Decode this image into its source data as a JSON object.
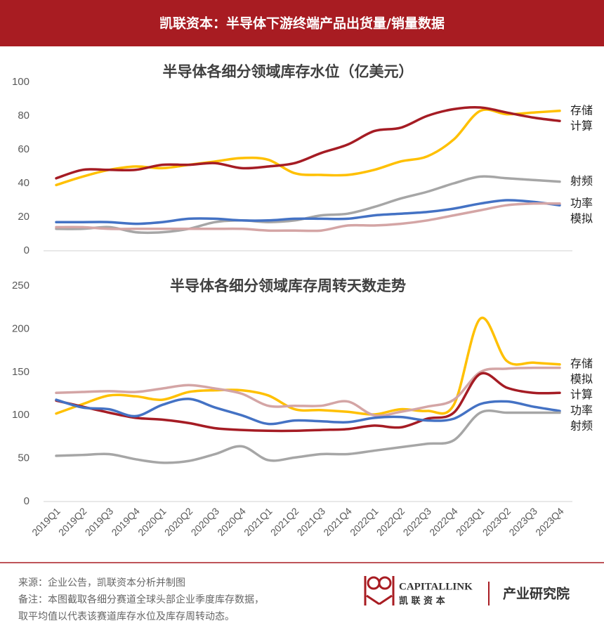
{
  "header": {
    "title": "凯联资本：半导体下游终端产品出货量/销量数据"
  },
  "chart_data": [
    {
      "type": "line",
      "title": "半导体各细分领域库存水位（亿美元）",
      "categories": [
        null,
        null,
        null,
        null,
        null,
        null,
        null,
        null,
        null,
        null,
        null,
        null,
        null,
        null,
        null,
        null,
        null,
        null,
        null,
        null
      ],
      "series": [
        {
          "name": "存储",
          "color": "#ffc000",
          "values": [
            39,
            44,
            48,
            50,
            49,
            51,
            53,
            55,
            54,
            46,
            45,
            45,
            48,
            53,
            56,
            66,
            83,
            81,
            82,
            83
          ]
        },
        {
          "name": "计算",
          "color": "#a51c24",
          "values": [
            43,
            48,
            48,
            48,
            51,
            51,
            52,
            49,
            50,
            52,
            58,
            63,
            71,
            73,
            80,
            84,
            85,
            82,
            79,
            77
          ]
        },
        {
          "name": "射频",
          "color": "#a6a6a6",
          "values": [
            13,
            13,
            14,
            11,
            11,
            13,
            17,
            18,
            17,
            18,
            21,
            22,
            26,
            31,
            35,
            40,
            44,
            43,
            42,
            41
          ]
        },
        {
          "name": "模拟",
          "color": "#4472c4",
          "values": [
            17,
            17,
            17,
            16,
            17,
            19,
            19,
            18,
            18,
            19,
            19,
            19,
            21,
            22,
            23,
            25,
            28,
            30,
            29,
            27
          ]
        },
        {
          "name": "功率",
          "color": "#d4a5a5",
          "values": [
            14,
            14,
            13,
            13,
            13,
            13,
            13,
            13,
            12,
            12,
            12,
            15,
            15,
            16,
            18,
            21,
            24,
            27,
            28,
            28
          ]
        }
      ],
      "ylim": [
        0,
        100
      ],
      "yticks": [
        0,
        20,
        40,
        60,
        80,
        100
      ],
      "grid": false
    },
    {
      "type": "line",
      "title": "半导体各细分领域库存周转天数走势",
      "categories": [
        "2019Q1",
        "2019Q2",
        "2019Q3",
        "2019Q4",
        "2020Q1",
        "2020Q2",
        "2020Q3",
        "2020Q4",
        "2021Q1",
        "2021Q2",
        "2021Q3",
        "2021Q4",
        "2022Q1",
        "2022Q2",
        "2022Q3",
        "2022Q4",
        "2023Q1",
        "2023Q2",
        "2023Q3",
        "2023Q4"
      ],
      "series": [
        {
          "name": "存储",
          "color": "#ffc000",
          "values": [
            102,
            113,
            123,
            122,
            118,
            127,
            129,
            129,
            123,
            107,
            106,
            104,
            101,
            107,
            105,
            112,
            212,
            163,
            161,
            159
          ]
        },
        {
          "name": "模拟",
          "color": "#d4a5a5",
          "values": [
            126,
            127,
            128,
            127,
            131,
            135,
            131,
            125,
            111,
            111,
            111,
            116,
            100,
            104,
            110,
            118,
            150,
            154,
            155,
            155
          ]
        },
        {
          "name": "计算",
          "color": "#a51c24",
          "values": [
            117,
            110,
            103,
            97,
            95,
            91,
            85,
            83,
            82,
            82,
            83,
            84,
            88,
            86,
            96,
            103,
            148,
            132,
            126,
            126
          ]
        },
        {
          "name": "功率",
          "color": "#4472c4",
          "values": [
            118,
            109,
            107,
            99,
            112,
            119,
            109,
            100,
            90,
            94,
            93,
            92,
            97,
            98,
            94,
            96,
            113,
            116,
            110,
            105
          ]
        },
        {
          "name": "射频",
          "color": "#a6a6a6",
          "values": [
            53,
            54,
            55,
            49,
            45,
            47,
            55,
            64,
            48,
            51,
            55,
            55,
            59,
            63,
            67,
            71,
            103,
            103,
            103,
            103
          ]
        }
      ],
      "ylim": [
        0,
        250
      ],
      "yticks": [
        0,
        50,
        100,
        150,
        200,
        250
      ],
      "grid": false
    }
  ],
  "footer": {
    "notes": [
      "来源：企业公告，凯联资本分析并制图",
      "备注：本图截取各细分赛道全球头部企业季度库存数据，",
      "取平均值以代表该赛道库存水位及库存周转动态。"
    ],
    "logo_en": "CAPITALLINK",
    "logo_cn": "凯 联 资 本",
    "division": "产业研究院"
  }
}
